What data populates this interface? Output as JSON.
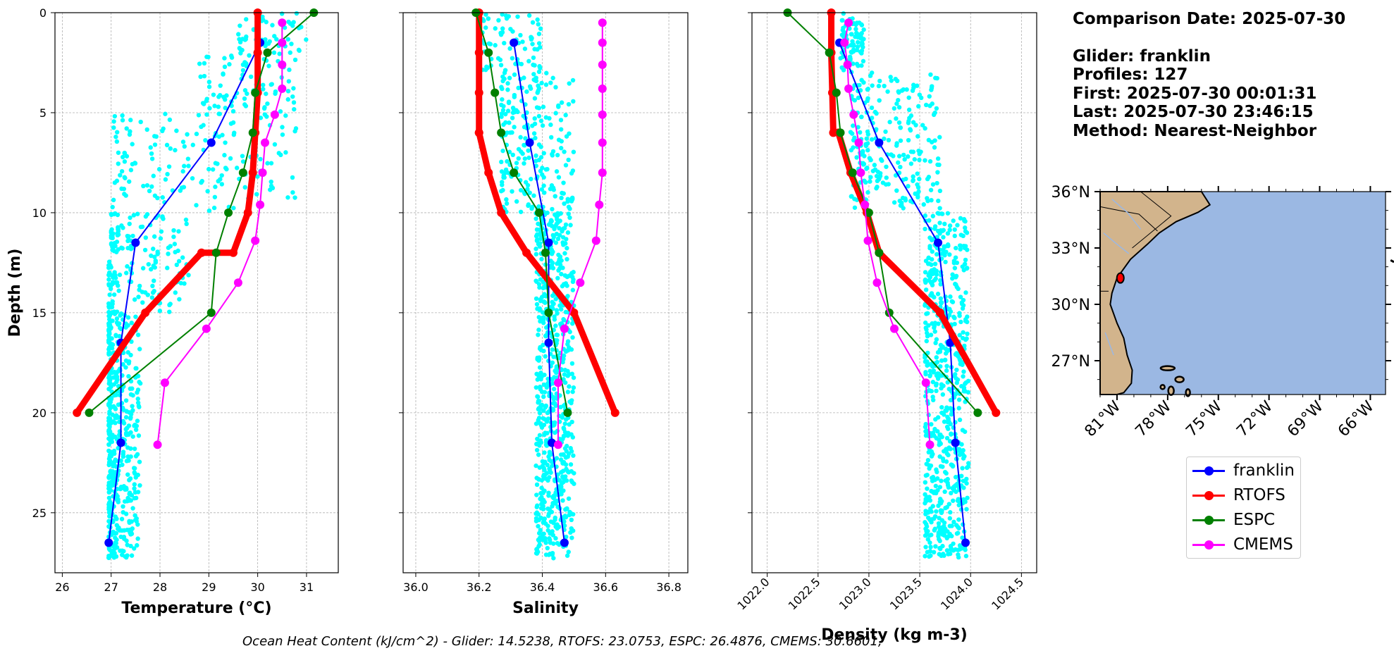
{
  "info": {
    "comparison_date": "Comparison Date: 2025-07-30",
    "glider": "Glider: franklin",
    "profiles": "Profiles: 127",
    "first": "First: 2025-07-30 00:01:31",
    "last": "Last: 2025-07-30 23:46:15",
    "method": "Method: Nearest-Neighbor"
  },
  "footer": "Ocean Heat Content (kJ/cm^2) - Glider: 14.5238,  RTOFS: 23.0753,  ESPC: 26.4876,  CMEMS: 30.6601,",
  "legend": {
    "items": [
      {
        "label": "franklin",
        "color": "#0000ff"
      },
      {
        "label": "RTOFS",
        "color": "#ff0000"
      },
      {
        "label": "ESPC",
        "color": "#008000"
      },
      {
        "label": "CMEMS",
        "color": "#ff00ff"
      }
    ]
  },
  "colors": {
    "scatter": "#00ffff",
    "franklin": "#0000ff",
    "RTOFS": "#ff0000",
    "ESPC": "#008000",
    "CMEMS": "#ff00ff",
    "land": "#d2b48c",
    "ocean": "#9bb8e3"
  },
  "chart_data": [
    {
      "type": "line",
      "title": "",
      "xlabel": "Temperature (°C)",
      "ylabel": "Depth (m)",
      "xlim": [
        25.85,
        31.65
      ],
      "ylim": [
        28,
        0
      ],
      "xticks": [
        "26",
        "27",
        "28",
        "29",
        "30",
        "31"
      ],
      "yticks": [
        "0",
        "5",
        "10",
        "15",
        "20",
        "25"
      ],
      "scatter": {
        "name": "glider profiles",
        "x_range": [
          26.9,
          31.0
        ],
        "depth_range": [
          0,
          27.5
        ]
      },
      "series": [
        {
          "name": "franklin",
          "x": [
            30.05,
            29.05,
            27.5,
            27.2,
            27.2,
            26.95
          ],
          "depth": [
            1.5,
            6.5,
            11.5,
            16.5,
            21.5,
            26.5
          ]
        },
        {
          "name": "RTOFS",
          "x": [
            30.0,
            30.0,
            30.0,
            29.95,
            29.9,
            29.8,
            29.5,
            28.85,
            27.7,
            26.3
          ],
          "depth": [
            0,
            2,
            4,
            6,
            8,
            10,
            12,
            12,
            15,
            20
          ]
        },
        {
          "name": "ESPC",
          "x": [
            31.15,
            30.2,
            29.95,
            29.9,
            29.7,
            29.4,
            29.15,
            29.05,
            26.55
          ],
          "depth": [
            0,
            2,
            4,
            6,
            8,
            10,
            12,
            15,
            20
          ]
        },
        {
          "name": "CMEMS",
          "x": [
            30.5,
            30.5,
            30.5,
            30.5,
            30.35,
            30.15,
            30.1,
            30.05,
            29.95,
            29.6,
            28.95,
            28.1,
            27.95
          ],
          "depth": [
            0.5,
            1.5,
            2.6,
            3.8,
            5.1,
            6.5,
            8.0,
            9.6,
            11.4,
            13.5,
            15.8,
            18.5,
            21.6
          ]
        }
      ]
    },
    {
      "type": "line",
      "title": "",
      "xlabel": "Salinity",
      "ylabel": "",
      "xlim": [
        35.96,
        36.86
      ],
      "ylim": [
        28,
        0
      ],
      "xticks": [
        "36.0",
        "36.2",
        "36.4",
        "36.6",
        "36.8"
      ],
      "yticks": [],
      "scatter": {
        "name": "glider profiles",
        "x_range": [
          36.2,
          36.5
        ],
        "depth_range": [
          0,
          27.5
        ]
      },
      "series": [
        {
          "name": "franklin",
          "x": [
            36.31,
            36.36,
            36.42,
            36.42,
            36.43,
            36.47
          ],
          "depth": [
            1.5,
            6.5,
            11.5,
            16.5,
            21.5,
            26.5
          ]
        },
        {
          "name": "RTOFS",
          "x": [
            36.2,
            36.2,
            36.2,
            36.2,
            36.2,
            36.23,
            36.27,
            36.35,
            36.5,
            36.63
          ],
          "depth": [
            0,
            2,
            4,
            6,
            6,
            8,
            10,
            12,
            15,
            20
          ]
        },
        {
          "name": "ESPC",
          "x": [
            36.19,
            36.23,
            36.25,
            36.27,
            36.31,
            36.39,
            36.41,
            36.42,
            36.48
          ],
          "depth": [
            0,
            2,
            4,
            6,
            8,
            10,
            12,
            15,
            20
          ]
        },
        {
          "name": "CMEMS",
          "x": [
            36.59,
            36.59,
            36.59,
            36.59,
            36.59,
            36.59,
            36.59,
            36.58,
            36.57,
            36.52,
            36.47,
            36.45,
            36.45
          ],
          "depth": [
            0.5,
            1.5,
            2.6,
            3.8,
            5.1,
            6.5,
            8.0,
            9.6,
            11.4,
            13.5,
            15.8,
            18.5,
            21.6
          ]
        }
      ]
    },
    {
      "type": "line",
      "title": "",
      "xlabel": "Density (kg m-3)",
      "ylabel": "",
      "xlim": [
        1021.85,
        1024.65
      ],
      "ylim": [
        28,
        0
      ],
      "xticks": [
        "1022.0",
        "1022.5",
        "1023.0",
        "1023.5",
        "1024.0",
        "1024.5"
      ],
      "yticks": [],
      "scatter": {
        "name": "glider profiles",
        "x_range": [
          1022.7,
          1024.0
        ],
        "depth_range": [
          0,
          27.5
        ]
      },
      "series": [
        {
          "name": "franklin",
          "x": [
            1022.71,
            1023.1,
            1023.68,
            1023.8,
            1023.85,
            1023.95
          ],
          "depth": [
            1.5,
            6.5,
            11.5,
            16.5,
            21.5,
            26.5
          ]
        },
        {
          "name": "RTOFS",
          "x": [
            1022.63,
            1022.63,
            1022.64,
            1022.65,
            1022.7,
            1022.82,
            1022.98,
            1023.1,
            1023.7,
            1024.25
          ],
          "depth": [
            0,
            2,
            4,
            6,
            6,
            8,
            10,
            12,
            15,
            20
          ]
        },
        {
          "name": "ESPC",
          "x": [
            1022.2,
            1022.61,
            1022.68,
            1022.72,
            1022.84,
            1023.0,
            1023.1,
            1023.2,
            1024.07
          ],
          "depth": [
            0,
            2,
            4,
            6,
            8,
            10,
            12,
            15,
            20
          ]
        },
        {
          "name": "CMEMS",
          "x": [
            1022.8,
            1022.76,
            1022.79,
            1022.8,
            1022.85,
            1022.9,
            1022.92,
            1022.96,
            1022.99,
            1023.08,
            1023.25,
            1023.56,
            1023.6
          ],
          "depth": [
            0.5,
            1.5,
            2.6,
            3.8,
            5.1,
            6.5,
            8.0,
            9.6,
            11.4,
            13.5,
            15.8,
            18.5,
            21.6
          ]
        }
      ]
    },
    {
      "type": "map",
      "title": "",
      "lon_range": [
        -82.0,
        -65.1
      ],
      "lat_range": [
        25.2,
        36.0
      ],
      "xticks": [
        "81°W",
        "78°W",
        "75°W",
        "72°W",
        "69°W",
        "66°W"
      ],
      "yticks": [
        "36°N",
        "33°N",
        "30°N",
        "27°N"
      ],
      "tick_values_lon": [
        -81,
        -78,
        -75,
        -72,
        -69,
        -66
      ],
      "tick_values_lat": [
        36,
        33,
        30,
        27
      ],
      "track": {
        "name": "franklin",
        "lon": -80.8,
        "lat": 31.4
      }
    }
  ]
}
